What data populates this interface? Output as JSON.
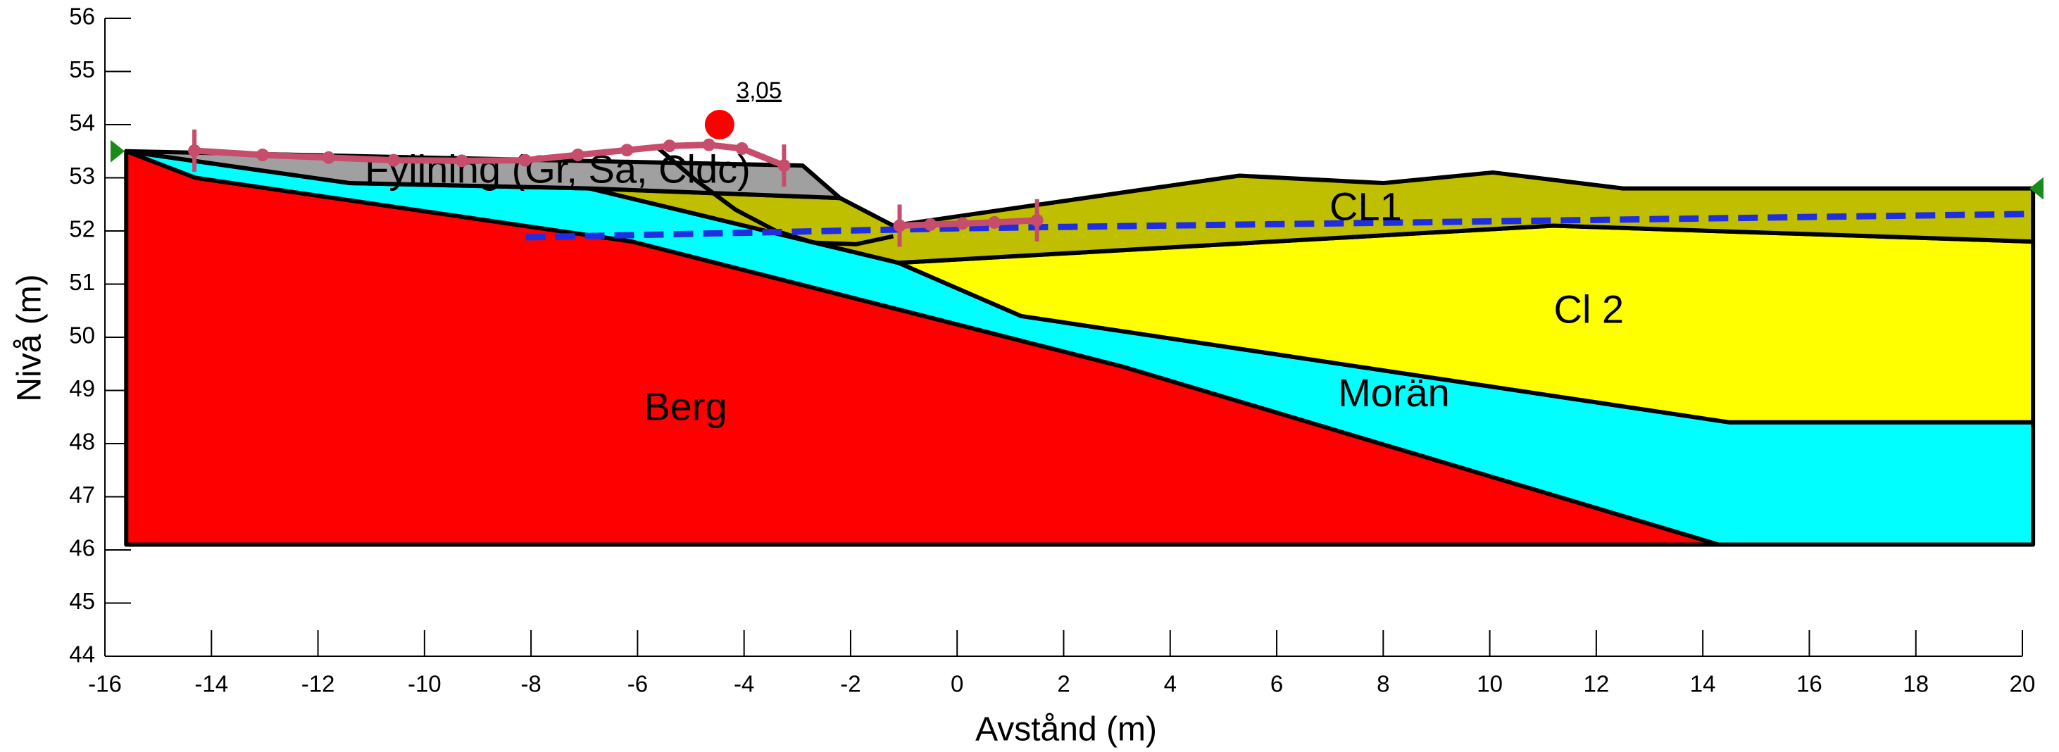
{
  "chart_data": {
    "type": "cross-section",
    "xlabel": "Avstånd (m)",
    "ylabel": "Nivå (m)",
    "xlim": [
      -16,
      20
    ],
    "ylim": [
      44,
      56
    ],
    "xticks": [
      -16,
      -14,
      -12,
      -10,
      -8,
      -6,
      -4,
      -2,
      0,
      2,
      4,
      6,
      8,
      10,
      12,
      14,
      16,
      18,
      20
    ],
    "yticks": [
      44,
      45,
      46,
      47,
      48,
      49,
      50,
      51,
      52,
      53,
      54,
      55,
      56
    ],
    "regions": [
      {
        "name": "Berg",
        "color": "#ff0000",
        "x": [
          -15.6,
          -14.3,
          -6.1,
          3.1,
          14.3,
          -15.6
        ],
        "y": [
          53.5,
          53.0,
          51.8,
          49.45,
          46.1,
          46.1
        ]
      },
      {
        "name": "Morän",
        "color": "#00ffff",
        "x": [
          -15.6,
          -11.4,
          -6.9,
          -1.1,
          1.2,
          14.5,
          20.2,
          20.2,
          14.3,
          3.1,
          -6.1,
          -14.3
        ],
        "y": [
          53.5,
          52.9,
          52.8,
          51.4,
          50.4,
          48.4,
          48.4,
          46.1,
          46.1,
          49.45,
          51.8,
          53.0
        ]
      },
      {
        "name": "Cl 2",
        "color": "#ffff00",
        "x": [
          -1.1,
          11.2,
          20.2,
          20.2,
          14.5,
          1.2
        ],
        "y": [
          51.4,
          52.1,
          51.8,
          48.4,
          48.4,
          50.4
        ]
      },
      {
        "name": "CL1",
        "color": "#bfbf00",
        "x": [
          -6.9,
          -2.2,
          -1.2,
          5.3,
          8.0,
          10.06,
          12.5,
          20.2,
          20.2,
          11.2,
          -1.1
        ],
        "y": [
          52.8,
          52.62,
          52.1,
          53.04,
          52.9,
          53.1,
          52.8,
          52.8,
          51.8,
          52.1,
          51.4
        ]
      },
      {
        "name": "Fyllning (Gr, Sa, Cldc)",
        "color": "#a0a0a0",
        "x": [
          -15.6,
          -2.9,
          -2.2,
          -6.9,
          -11.4
        ],
        "y": [
          53.5,
          53.23,
          52.62,
          52.8,
          52.9
        ]
      }
    ],
    "water_table": {
      "color": "#1f2ee0",
      "x": [
        -8.1,
        0,
        10,
        20.2
      ],
      "y": [
        51.88,
        52.05,
        52.18,
        52.32
      ]
    },
    "slip_surface": {
      "x": [
        -5.64,
        -4.9,
        -4.16,
        -3.4,
        -2.69,
        -1.9,
        -1.2
      ],
      "y": [
        53.58,
        52.95,
        52.4,
        52.0,
        51.78,
        51.75,
        51.9
      ]
    },
    "entry": {
      "color": "#c64d6b",
      "x": [
        -14.32,
        -13.04,
        -11.8,
        -10.58,
        -9.3,
        -8.11,
        -7.12,
        -6.2,
        -5.4,
        -4.66,
        -4.04,
        -3.25
      ],
      "y": [
        53.51,
        53.43,
        53.38,
        53.33,
        53.32,
        53.33,
        53.43,
        53.52,
        53.6,
        53.62,
        53.55,
        53.23
      ]
    },
    "exit": {
      "color": "#c64d6b",
      "x": [
        -1.08,
        -0.5,
        0.1,
        0.7,
        1.5
      ],
      "y": [
        52.1,
        52.12,
        52.14,
        52.16,
        52.2
      ]
    },
    "critical": {
      "x": -4.46,
      "y": 54.0,
      "color": "#ff0000",
      "fos": {
        "value": 3.05,
        "label": "3,05"
      }
    }
  }
}
